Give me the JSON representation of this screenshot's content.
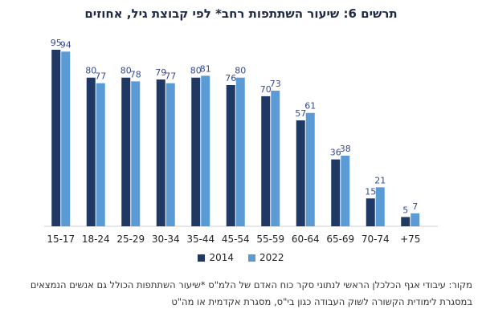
{
  "chart_data": {
    "type": "bar",
    "title": "תרשים 6: שיעור השתתפות רחב* לפי קבוצת גיל, אחוזים",
    "categories": [
      "15-17",
      "18-24",
      "25-29",
      "30-34",
      "35-44",
      "45-54",
      "55-59",
      "60-64",
      "65-69",
      "70-74",
      "+75"
    ],
    "series": [
      {
        "name": "2014",
        "color": "#1f3864",
        "values": [
          95,
          80,
          80,
          79,
          80,
          76,
          70,
          57,
          36,
          15,
          5
        ]
      },
      {
        "name": "2022",
        "color": "#5b9bd5",
        "values": [
          94,
          77,
          78,
          77,
          81,
          80,
          73,
          61,
          38,
          21,
          7
        ]
      }
    ],
    "ylim": [
      0,
      100
    ],
    "grid": false,
    "legend": "bottom-center"
  },
  "source_note": {
    "line1": "מקור: עיבודי אגף הכלכלן הראשי לנתוני סקר כוח האדם של הלמ\"ס *שיעור השתתפות הכולל גם אנשים הנמצאים",
    "line2": "במסגרת לימודית הקשורה לשוק העבודה כגון בי\"ס, מסגרת אקדמית או מה\"ט"
  }
}
